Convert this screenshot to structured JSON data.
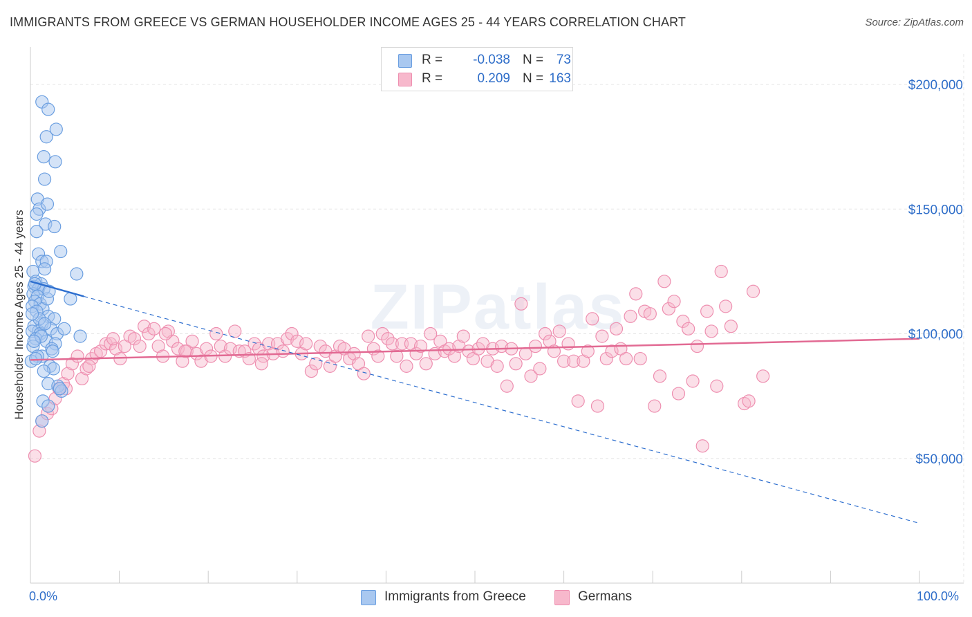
{
  "title": "IMMIGRANTS FROM GREECE VS GERMAN HOUSEHOLDER INCOME AGES 25 - 44 YEARS CORRELATION CHART",
  "source": "Source: ZipAtlas.com",
  "watermark": "ZIPatlas",
  "legend": {
    "series1": {
      "r_label": "R =",
      "r_value": "-0.038",
      "n_label": "N =",
      "n_value": "73"
    },
    "series2": {
      "r_label": "R =",
      "r_value": "0.209",
      "n_label": "N =",
      "n_value": "163"
    }
  },
  "bottom_legend": {
    "series1": "Immigrants from Greece",
    "series2": "Germans"
  },
  "colors": {
    "series1_fill": "#a9c8f0",
    "series1_stroke": "#6a9ee0",
    "series1_line": "#2e6fcf",
    "series2_fill": "#f7b8cc",
    "series2_stroke": "#ee8fb0",
    "series2_line": "#e26a93",
    "axis_text": "#2f6ec9",
    "grid": "#e6e6e6"
  },
  "chart_data": {
    "type": "scatter",
    "title": "IMMIGRANTS FROM GREECE VS GERMAN HOUSEHOLDER INCOME AGES 25 - 44 YEARS CORRELATION CHART",
    "xlabel": "",
    "ylabel": "Householder Income Ages 25 - 44 years",
    "xlim": [
      0,
      100
    ],
    "ylim": [
      0,
      215000
    ],
    "x_tick_labels": [
      "0.0%",
      "100.0%"
    ],
    "y_ticks": [
      50000,
      100000,
      150000,
      200000
    ],
    "y_tick_labels": [
      "$50,000",
      "$100,000",
      "$150,000",
      "$200,000"
    ],
    "grid": true,
    "legend_position": "top-center",
    "series": [
      {
        "name": "Immigrants from Greece",
        "trend_solid": {
          "x": [
            0.0,
            6.0
          ],
          "y": [
            121000,
            115000
          ]
        },
        "trend_dashed": {
          "x": [
            6.0,
            100.0
          ],
          "y": [
            115000,
            24000
          ]
        },
        "points": [
          [
            1.3,
            193000
          ],
          [
            2.0,
            190000
          ],
          [
            2.9,
            182000
          ],
          [
            1.8,
            179000
          ],
          [
            1.5,
            171000
          ],
          [
            2.8,
            169000
          ],
          [
            1.6,
            162000
          ],
          [
            0.8,
            154000
          ],
          [
            1.0,
            150000
          ],
          [
            1.9,
            152000
          ],
          [
            0.7,
            148000
          ],
          [
            1.7,
            144000
          ],
          [
            2.7,
            143000
          ],
          [
            0.7,
            141000
          ],
          [
            3.4,
            133000
          ],
          [
            0.9,
            132000
          ],
          [
            1.3,
            129000
          ],
          [
            1.8,
            129000
          ],
          [
            0.3,
            125000
          ],
          [
            1.6,
            126000
          ],
          [
            5.2,
            124000
          ],
          [
            0.6,
            121000
          ],
          [
            1.2,
            120000
          ],
          [
            0.4,
            119000
          ],
          [
            0.9,
            118000
          ],
          [
            1.5,
            118000
          ],
          [
            0.3,
            116000
          ],
          [
            0.8,
            115000
          ],
          [
            4.5,
            114000
          ],
          [
            0.5,
            113000
          ],
          [
            1.1,
            112000
          ],
          [
            0.2,
            111000
          ],
          [
            1.4,
            110000
          ],
          [
            0.7,
            109000
          ],
          [
            2.0,
            107000
          ],
          [
            2.7,
            106000
          ],
          [
            1.3,
            104000
          ],
          [
            0.4,
            103000
          ],
          [
            2.3,
            102000
          ],
          [
            0.9,
            101000
          ],
          [
            0.2,
            101000
          ],
          [
            1.1,
            100000
          ],
          [
            3.0,
            100000
          ],
          [
            5.6,
            99000
          ],
          [
            0.6,
            98000
          ],
          [
            1.8,
            97000
          ],
          [
            2.8,
            96000
          ],
          [
            0.3,
            95000
          ],
          [
            2.4,
            94000
          ],
          [
            1.3,
            91000
          ],
          [
            0.8,
            91000
          ],
          [
            0.1,
            89000
          ],
          [
            2.2,
            87000
          ],
          [
            2.6,
            86000
          ],
          [
            1.5,
            85000
          ],
          [
            2.0,
            80000
          ],
          [
            3.1,
            79000
          ],
          [
            3.5,
            77000
          ],
          [
            1.4,
            73000
          ],
          [
            2.0,
            71000
          ],
          [
            1.3,
            65000
          ],
          [
            0.5,
            120000
          ],
          [
            1.0,
            106000
          ],
          [
            2.5,
            93000
          ],
          [
            1.9,
            114000
          ],
          [
            0.6,
            90000
          ],
          [
            3.3,
            78000
          ],
          [
            1.2,
            99000
          ],
          [
            0.2,
            108000
          ],
          [
            2.1,
            117000
          ],
          [
            0.4,
            97000
          ],
          [
            1.6,
            104000
          ],
          [
            3.8,
            102000
          ]
        ]
      },
      {
        "name": "Germans",
        "trend_solid": {
          "x": [
            0.0,
            100.0
          ],
          "y": [
            89500,
            98000
          ]
        },
        "points": [
          [
            0.5,
            51000
          ],
          [
            1.0,
            61000
          ],
          [
            1.3,
            65000
          ],
          [
            1.9,
            68000
          ],
          [
            2.4,
            70000
          ],
          [
            2.8,
            74000
          ],
          [
            3.2,
            78000
          ],
          [
            3.7,
            80000
          ],
          [
            4.2,
            84000
          ],
          [
            4.7,
            88000
          ],
          [
            5.3,
            91000
          ],
          [
            5.8,
            82000
          ],
          [
            6.3,
            86000
          ],
          [
            6.9,
            90000
          ],
          [
            7.4,
            92000
          ],
          [
            7.9,
            93000
          ],
          [
            8.5,
            96000
          ],
          [
            9.0,
            96000
          ],
          [
            9.6,
            94000
          ],
          [
            10.1,
            90000
          ],
          [
            10.6,
            95000
          ],
          [
            11.2,
            99000
          ],
          [
            11.7,
            98000
          ],
          [
            12.3,
            95000
          ],
          [
            12.8,
            103000
          ],
          [
            13.3,
            100000
          ],
          [
            13.9,
            102000
          ],
          [
            14.4,
            95000
          ],
          [
            14.9,
            91000
          ],
          [
            15.5,
            101000
          ],
          [
            16.0,
            97000
          ],
          [
            16.6,
            94000
          ],
          [
            17.1,
            89000
          ],
          [
            17.6,
            93000
          ],
          [
            18.2,
            97000
          ],
          [
            18.7,
            92000
          ],
          [
            19.2,
            89000
          ],
          [
            19.8,
            94000
          ],
          [
            20.3,
            91000
          ],
          [
            20.9,
            100000
          ],
          [
            21.4,
            95000
          ],
          [
            21.9,
            91000
          ],
          [
            22.5,
            94000
          ],
          [
            23.0,
            101000
          ],
          [
            23.5,
            93000
          ],
          [
            24.1,
            93000
          ],
          [
            24.6,
            90000
          ],
          [
            25.2,
            96000
          ],
          [
            25.7,
            94000
          ],
          [
            26.2,
            91000
          ],
          [
            26.8,
            96000
          ],
          [
            27.3,
            92000
          ],
          [
            27.8,
            96000
          ],
          [
            28.4,
            93000
          ],
          [
            28.9,
            98000
          ],
          [
            29.4,
            100000
          ],
          [
            30.0,
            97000
          ],
          [
            30.5,
            92000
          ],
          [
            31.0,
            96000
          ],
          [
            31.6,
            85000
          ],
          [
            32.1,
            88000
          ],
          [
            32.6,
            95000
          ],
          [
            33.2,
            93000
          ],
          [
            33.7,
            87000
          ],
          [
            34.3,
            91000
          ],
          [
            34.8,
            95000
          ],
          [
            35.3,
            94000
          ],
          [
            35.9,
            90000
          ],
          [
            36.4,
            92000
          ],
          [
            36.9,
            88000
          ],
          [
            37.5,
            84000
          ],
          [
            38.0,
            99000
          ],
          [
            38.6,
            94000
          ],
          [
            39.1,
            91000
          ],
          [
            39.6,
            100000
          ],
          [
            40.2,
            98000
          ],
          [
            40.7,
            96000
          ],
          [
            41.2,
            91000
          ],
          [
            41.8,
            96000
          ],
          [
            42.3,
            87000
          ],
          [
            42.8,
            96000
          ],
          [
            43.4,
            92000
          ],
          [
            43.9,
            95000
          ],
          [
            44.5,
            88000
          ],
          [
            45.0,
            100000
          ],
          [
            45.5,
            92000
          ],
          [
            46.1,
            97000
          ],
          [
            46.6,
            93000
          ],
          [
            47.1,
            94000
          ],
          [
            47.7,
            91000
          ],
          [
            48.2,
            95000
          ],
          [
            48.7,
            99000
          ],
          [
            49.3,
            93000
          ],
          [
            49.8,
            90000
          ],
          [
            50.4,
            94000
          ],
          [
            50.9,
            96000
          ],
          [
            51.4,
            89000
          ],
          [
            52.0,
            94000
          ],
          [
            52.5,
            87000
          ],
          [
            53.0,
            95000
          ],
          [
            53.6,
            79000
          ],
          [
            54.1,
            94000
          ],
          [
            54.6,
            88000
          ],
          [
            55.2,
            112000
          ],
          [
            55.7,
            92000
          ],
          [
            56.3,
            83000
          ],
          [
            56.8,
            95000
          ],
          [
            57.3,
            86000
          ],
          [
            57.9,
            100000
          ],
          [
            58.4,
            97000
          ],
          [
            58.9,
            93000
          ],
          [
            59.5,
            101000
          ],
          [
            60.0,
            89000
          ],
          [
            60.5,
            96000
          ],
          [
            61.1,
            89000
          ],
          [
            61.6,
            73000
          ],
          [
            62.2,
            89000
          ],
          [
            62.7,
            93000
          ],
          [
            63.2,
            106000
          ],
          [
            63.8,
            71000
          ],
          [
            64.3,
            99000
          ],
          [
            64.8,
            90000
          ],
          [
            65.4,
            93000
          ],
          [
            65.9,
            102000
          ],
          [
            66.4,
            94000
          ],
          [
            67.0,
            90000
          ],
          [
            67.5,
            107000
          ],
          [
            68.1,
            116000
          ],
          [
            68.6,
            90000
          ],
          [
            69.1,
            109000
          ],
          [
            69.7,
            108000
          ],
          [
            70.2,
            71000
          ],
          [
            70.8,
            83000
          ],
          [
            71.3,
            121000
          ],
          [
            71.8,
            110000
          ],
          [
            72.4,
            113000
          ],
          [
            72.9,
            76000
          ],
          [
            73.4,
            105000
          ],
          [
            74.0,
            102000
          ],
          [
            74.5,
            81000
          ],
          [
            75.0,
            95000
          ],
          [
            75.6,
            55000
          ],
          [
            76.1,
            109000
          ],
          [
            76.6,
            101000
          ],
          [
            77.2,
            79000
          ],
          [
            77.7,
            125000
          ],
          [
            78.2,
            111000
          ],
          [
            78.8,
            103000
          ],
          [
            80.3,
            72000
          ],
          [
            80.8,
            73000
          ],
          [
            81.3,
            117000
          ],
          [
            82.4,
            83000
          ],
          [
            4.0,
            78000
          ],
          [
            6.6,
            87000
          ],
          [
            9.3,
            98000
          ],
          [
            15.2,
            100000
          ],
          [
            17.4,
            93000
          ],
          [
            26.0,
            88000
          ]
        ]
      }
    ]
  }
}
